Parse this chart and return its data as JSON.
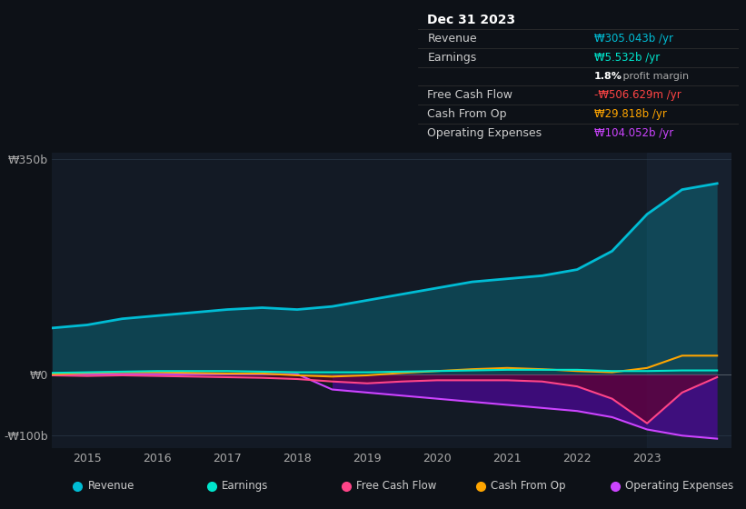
{
  "bg_color": "#0d1117",
  "plot_bg_color": "#131a25",
  "highlight_bg_color": "#1a2535",
  "title": "Dec 31 2023",
  "table": {
    "Revenue": {
      "value": "₩305.043b /yr",
      "color": "#00bcd4"
    },
    "Earnings": {
      "value": "₩5.532b /yr",
      "color": "#00e5cc"
    },
    "profit_margin": {
      "value": "1.8%",
      "color": "#ffffff"
    },
    "Free Cash Flow": {
      "value": "-₩506.629m /yr",
      "color": "#ff4444"
    },
    "Cash From Op": {
      "value": "₩29.818b /yr",
      "color": "#ffa500"
    },
    "Operating Expenses": {
      "value": "₩104.052b /yr",
      "color": "#cc44ff"
    }
  },
  "years": [
    2014.5,
    2015.0,
    2015.5,
    2016.0,
    2016.5,
    2017.0,
    2017.5,
    2018.0,
    2018.5,
    2019.0,
    2019.5,
    2020.0,
    2020.5,
    2021.0,
    2021.5,
    2022.0,
    2022.5,
    2023.0,
    2023.5,
    2024.0
  ],
  "revenue": [
    75,
    80,
    90,
    95,
    100,
    105,
    108,
    105,
    110,
    120,
    130,
    140,
    150,
    155,
    160,
    170,
    200,
    260,
    300,
    310
  ],
  "earnings": [
    2,
    3,
    4,
    5,
    5,
    5,
    4,
    3,
    3,
    3,
    4,
    5,
    6,
    7,
    7,
    7,
    5,
    5,
    6,
    6
  ],
  "free_cash_flow": [
    -2,
    -3,
    -2,
    -3,
    -4,
    -5,
    -6,
    -8,
    -12,
    -15,
    -12,
    -10,
    -10,
    -10,
    -12,
    -20,
    -40,
    -80,
    -30,
    -5
  ],
  "cash_from_op": [
    0,
    2,
    3,
    3,
    2,
    1,
    1,
    -2,
    -4,
    -2,
    2,
    5,
    8,
    10,
    8,
    5,
    3,
    10,
    30,
    30
  ],
  "operating_expenses": [
    0,
    0,
    0,
    0,
    0,
    0,
    0,
    0,
    -25,
    -30,
    -35,
    -40,
    -45,
    -50,
    -55,
    -60,
    -70,
    -90,
    -100,
    -105
  ],
  "legend": [
    {
      "label": "Revenue",
      "color": "#00bcd4"
    },
    {
      "label": "Earnings",
      "color": "#00e5cc"
    },
    {
      "label": "Free Cash Flow",
      "color": "#ff4488"
    },
    {
      "label": "Cash From Op",
      "color": "#ffa500"
    },
    {
      "label": "Operating Expenses",
      "color": "#cc44ff"
    }
  ],
  "ylim": [
    -120,
    360
  ],
  "yticks": [
    -100,
    0,
    350
  ],
  "ytick_labels": [
    "-₩100b",
    "₩0",
    "₩350b"
  ],
  "xticks": [
    2015,
    2016,
    2017,
    2018,
    2019,
    2020,
    2021,
    2022,
    2023
  ],
  "xlim": [
    2014.5,
    2024.2
  ]
}
